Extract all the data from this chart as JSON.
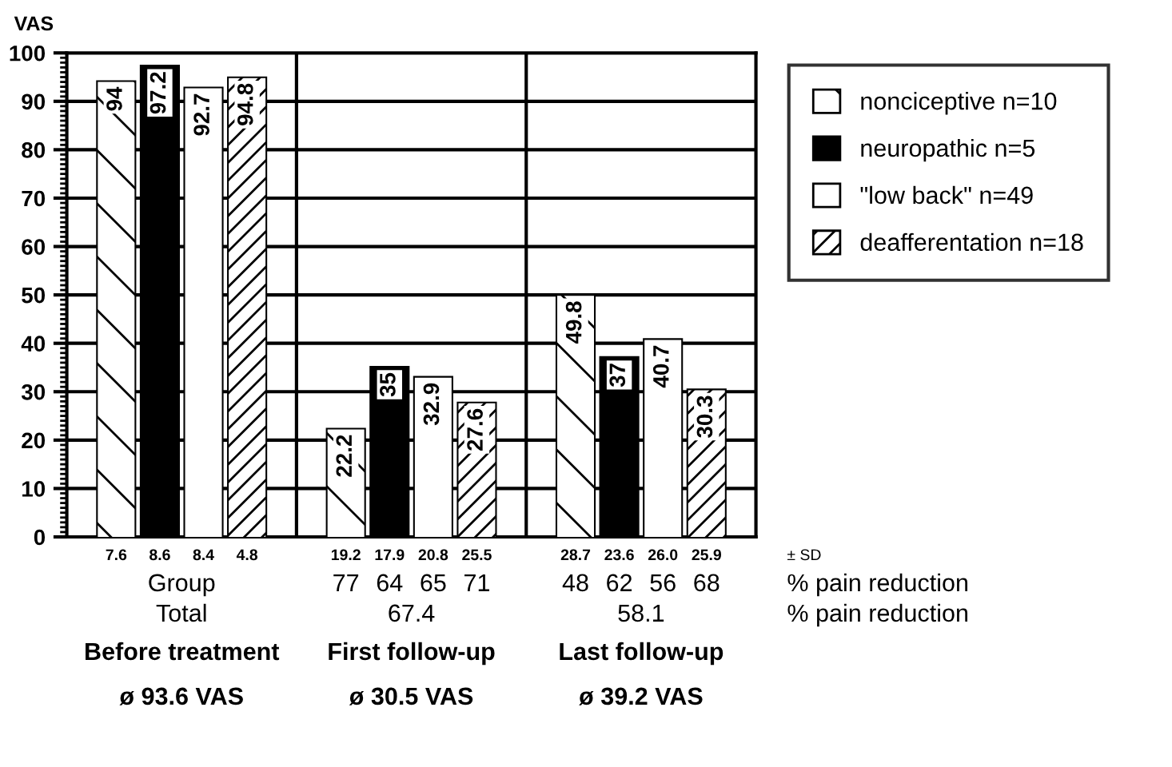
{
  "chart_data": {
    "type": "bar",
    "ylabel": "VAS",
    "categories": [
      "Before treatment",
      "First follow-up",
      "Last follow-up"
    ],
    "series": [
      {
        "name": "nonciceptive n=10",
        "color": "#ffffff",
        "values": [
          94,
          22.2,
          49.8
        ]
      },
      {
        "name": "neuropathic n=5",
        "color": "#000000",
        "values": [
          97.2,
          35,
          37
        ]
      },
      {
        "name": "\"low back\" n=49",
        "color": "#ffffff",
        "values": [
          92.7,
          32.9,
          40.7
        ]
      },
      {
        "name": "deafferentation n=18",
        "color": "#ffffff",
        "values": [
          94.8,
          27.6,
          30.3
        ]
      }
    ],
    "ylim": [
      0,
      100
    ],
    "yticks": [
      0,
      10,
      20,
      30,
      40,
      50,
      60,
      70,
      80,
      90,
      100
    ],
    "grid": "y",
    "legend": "top right",
    "data_labels": true,
    "annotations": [
      "7.6",
      "8.6",
      "8.4",
      "4.8",
      "19.2",
      "17.9",
      "20.8",
      "25.5",
      "28.7",
      "23.6",
      "26.0",
      "25.9",
      "± SD",
      "Group",
      "77",
      "64",
      "65",
      "71",
      "48",
      "62",
      "56",
      "68",
      "% pain reduction",
      "Total",
      "67.4",
      "58.1",
      "% pain reduction",
      "ø 93.6 VAS",
      "ø 30.5 VAS",
      "ø 39.2 VAS"
    ]
  }
}
